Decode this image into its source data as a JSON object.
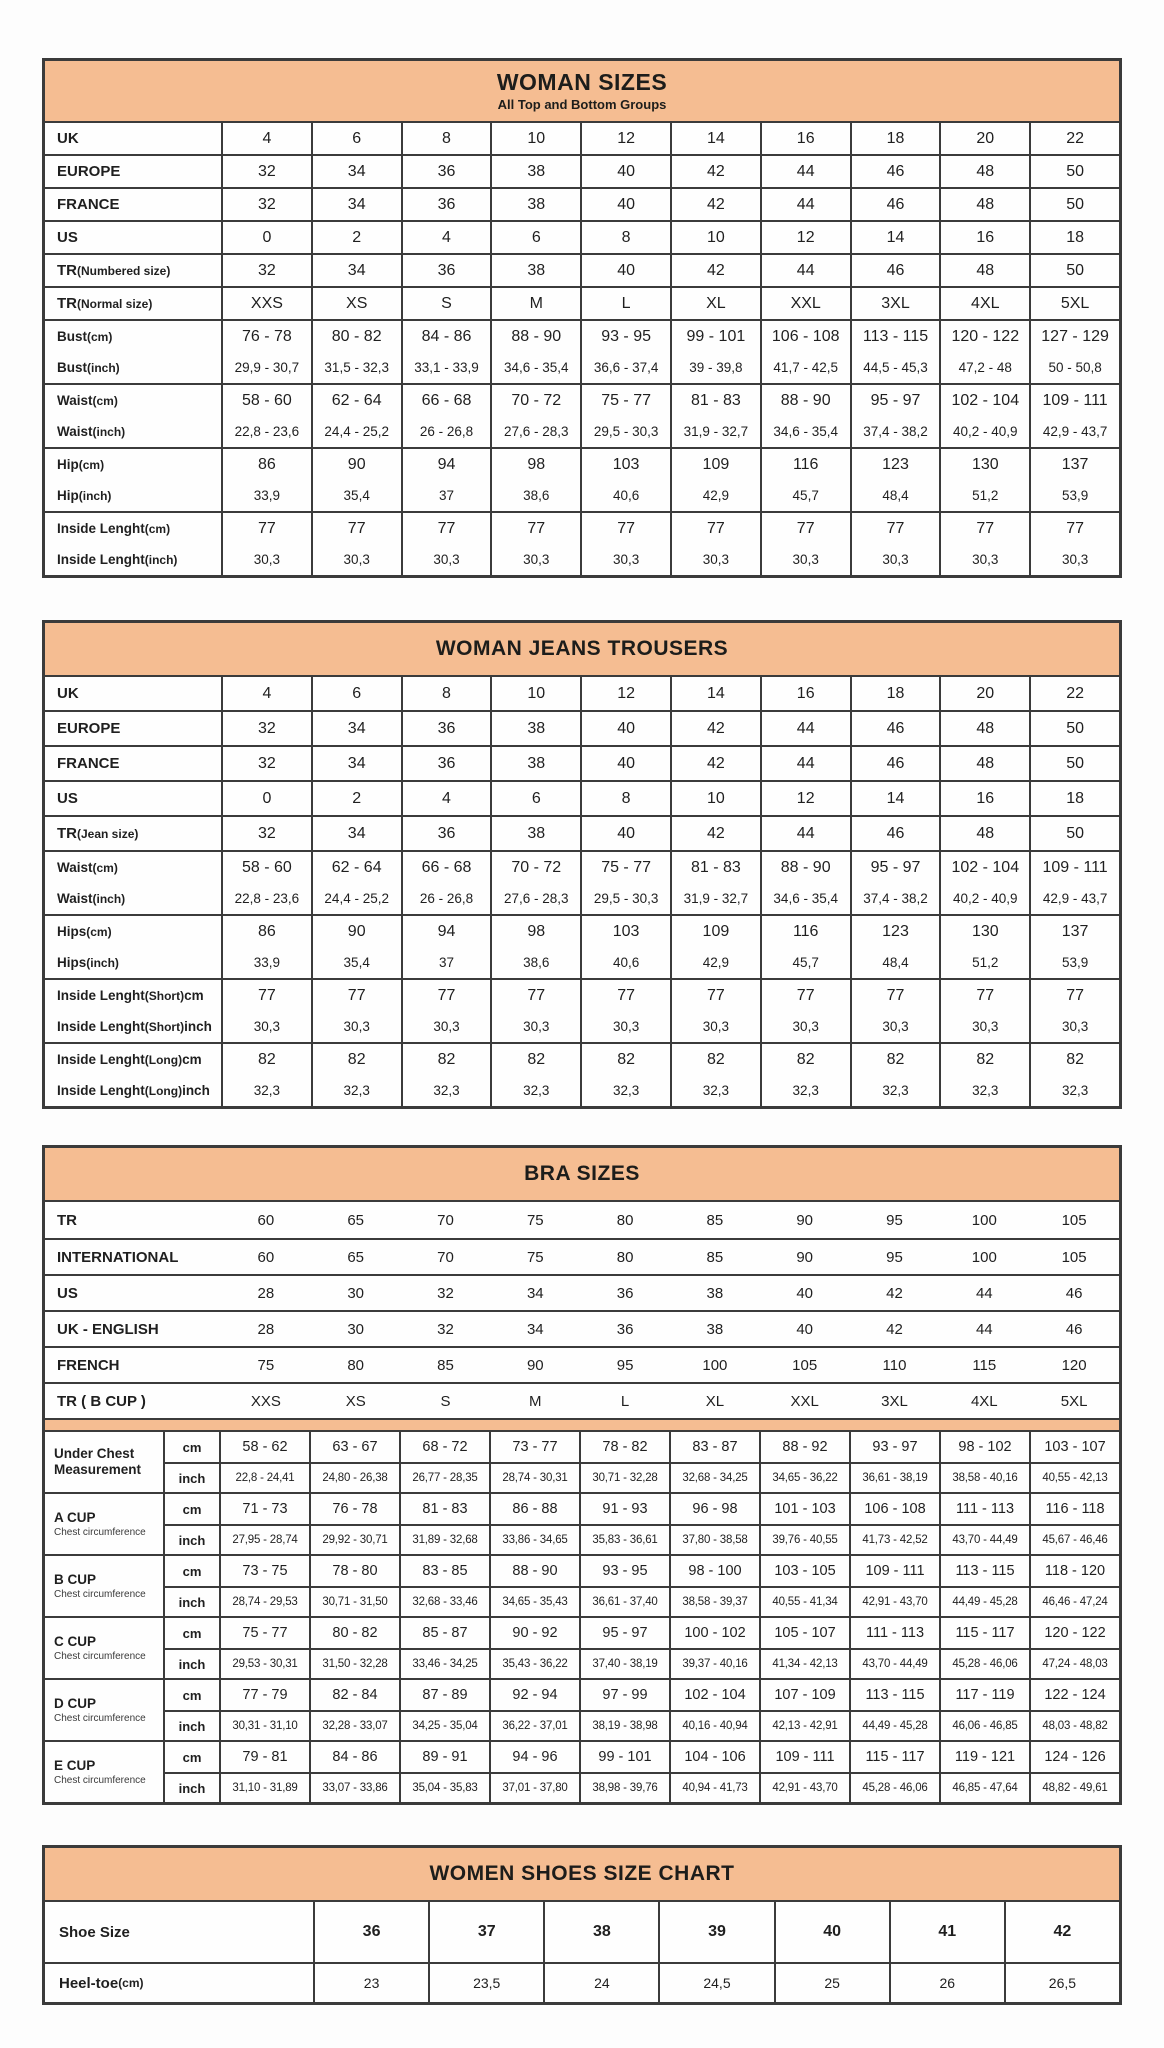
{
  "page": {
    "accent_color": "#f5bd92",
    "border_color": "#3b3b3b",
    "text_color": "#1d1d1b"
  },
  "woman_sizes": {
    "title": "WOMAN SIZES",
    "subtitle": "All Top and Bottom Groups",
    "simple_rows": [
      {
        "label": "UK",
        "values": [
          "4",
          "6",
          "8",
          "10",
          "12",
          "14",
          "16",
          "18",
          "20",
          "22"
        ]
      },
      {
        "label": "EUROPE",
        "values": [
          "32",
          "34",
          "36",
          "38",
          "40",
          "42",
          "44",
          "46",
          "48",
          "50"
        ]
      },
      {
        "label": "FRANCE",
        "values": [
          "32",
          "34",
          "36",
          "38",
          "40",
          "42",
          "44",
          "46",
          "48",
          "50"
        ]
      },
      {
        "label": "US",
        "values": [
          "0",
          "2",
          "4",
          "6",
          "8",
          "10",
          "12",
          "14",
          "16",
          "18"
        ]
      },
      {
        "label": "TR (Numbered size)",
        "values": [
          "32",
          "34",
          "36",
          "38",
          "40",
          "42",
          "44",
          "46",
          "48",
          "50"
        ]
      },
      {
        "label": "TR (Normal size)",
        "values": [
          "XXS",
          "XS",
          "S",
          "M",
          "L",
          "XL",
          "XXL",
          "3XL",
          "4XL",
          "5XL"
        ]
      }
    ],
    "pair_rows": [
      {
        "label_cm": "Bust (cm)",
        "label_inch": "Bust (inch)",
        "cm": [
          "76 - 78",
          "80 - 82",
          "84 - 86",
          "88 - 90",
          "93 - 95",
          "99 - 101",
          "106 - 108",
          "113 - 115",
          "120 - 122",
          "127 - 129"
        ],
        "inch": [
          "29,9 - 30,7",
          "31,5 - 32,3",
          "33,1 - 33,9",
          "34,6 - 35,4",
          "36,6 - 37,4",
          "39 - 39,8",
          "41,7 - 42,5",
          "44,5 - 45,3",
          "47,2 - 48",
          "50 - 50,8"
        ]
      },
      {
        "label_cm": "Waist (cm)",
        "label_inch": "Waist (inch)",
        "cm": [
          "58 - 60",
          "62 - 64",
          "66 - 68",
          "70 - 72",
          "75 - 77",
          "81 - 83",
          "88 - 90",
          "95 - 97",
          "102 - 104",
          "109 - 111"
        ],
        "inch": [
          "22,8 - 23,6",
          "24,4 - 25,2",
          "26 - 26,8",
          "27,6 - 28,3",
          "29,5 - 30,3",
          "31,9 - 32,7",
          "34,6 - 35,4",
          "37,4 - 38,2",
          "40,2 - 40,9",
          "42,9 - 43,7"
        ]
      },
      {
        "label_cm": "Hip (cm)",
        "label_inch": "Hip (inch)",
        "cm": [
          "86",
          "90",
          "94",
          "98",
          "103",
          "109",
          "116",
          "123",
          "130",
          "137"
        ],
        "inch": [
          "33,9",
          "35,4",
          "37",
          "38,6",
          "40,6",
          "42,9",
          "45,7",
          "48,4",
          "51,2",
          "53,9"
        ]
      },
      {
        "label_cm": "Inside Lenght (cm)",
        "label_inch": "Inside Lenght (inch)",
        "cm": [
          "77",
          "77",
          "77",
          "77",
          "77",
          "77",
          "77",
          "77",
          "77",
          "77"
        ],
        "inch": [
          "30,3",
          "30,3",
          "30,3",
          "30,3",
          "30,3",
          "30,3",
          "30,3",
          "30,3",
          "30,3",
          "30,3"
        ]
      }
    ]
  },
  "jeans": {
    "title": "WOMAN JEANS TROUSERS",
    "simple_rows": [
      {
        "label": "UK",
        "values": [
          "4",
          "6",
          "8",
          "10",
          "12",
          "14",
          "16",
          "18",
          "20",
          "22"
        ]
      },
      {
        "label": "EUROPE",
        "values": [
          "32",
          "34",
          "36",
          "38",
          "40",
          "42",
          "44",
          "46",
          "48",
          "50"
        ]
      },
      {
        "label": "FRANCE",
        "values": [
          "32",
          "34",
          "36",
          "38",
          "40",
          "42",
          "44",
          "46",
          "48",
          "50"
        ]
      },
      {
        "label": "US",
        "values": [
          "0",
          "2",
          "4",
          "6",
          "8",
          "10",
          "12",
          "14",
          "16",
          "18"
        ]
      },
      {
        "label": "TR (Jean size)",
        "values": [
          "32",
          "34",
          "36",
          "38",
          "40",
          "42",
          "44",
          "46",
          "48",
          "50"
        ]
      }
    ],
    "pair_rows": [
      {
        "label_cm": "Waist (cm)",
        "label_inch": "Waist (inch)",
        "cm": [
          "58 - 60",
          "62 - 64",
          "66 - 68",
          "70 - 72",
          "75 - 77",
          "81 - 83",
          "88 - 90",
          "95 - 97",
          "102 - 104",
          "109 - 111"
        ],
        "inch": [
          "22,8 - 23,6",
          "24,4 - 25,2",
          "26 - 26,8",
          "27,6 - 28,3",
          "29,5 - 30,3",
          "31,9 - 32,7",
          "34,6 - 35,4",
          "37,4 - 38,2",
          "40,2 - 40,9",
          "42,9 - 43,7"
        ]
      },
      {
        "label_cm": "Hips (cm)",
        "label_inch": "Hips (inch)",
        "cm": [
          "86",
          "90",
          "94",
          "98",
          "103",
          "109",
          "116",
          "123",
          "130",
          "137"
        ],
        "inch": [
          "33,9",
          "35,4",
          "37",
          "38,6",
          "40,6",
          "42,9",
          "45,7",
          "48,4",
          "51,2",
          "53,9"
        ]
      },
      {
        "label_cm": "Inside Lenght (Short) cm",
        "label_inch": "Inside Lenght (Short) inch",
        "cm": [
          "77",
          "77",
          "77",
          "77",
          "77",
          "77",
          "77",
          "77",
          "77",
          "77"
        ],
        "inch": [
          "30,3",
          "30,3",
          "30,3",
          "30,3",
          "30,3",
          "30,3",
          "30,3",
          "30,3",
          "30,3",
          "30,3"
        ]
      },
      {
        "label_cm": "Inside Lenght (Long) cm",
        "label_inch": "Inside Lenght (Long) inch",
        "cm": [
          "82",
          "82",
          "82",
          "82",
          "82",
          "82",
          "82",
          "82",
          "82",
          "82"
        ],
        "inch": [
          "32,3",
          "32,3",
          "32,3",
          "32,3",
          "32,3",
          "32,3",
          "32,3",
          "32,3",
          "32,3",
          "32,3"
        ]
      }
    ]
  },
  "bra": {
    "title": "BRA SIZES",
    "simple_rows": [
      {
        "label": "TR",
        "values": [
          "60",
          "65",
          "70",
          "75",
          "80",
          "85",
          "90",
          "95",
          "100",
          "105"
        ]
      },
      {
        "label": "INTERNATIONAL",
        "values": [
          "60",
          "65",
          "70",
          "75",
          "80",
          "85",
          "90",
          "95",
          "100",
          "105"
        ]
      },
      {
        "label": "US",
        "values": [
          "28",
          "30",
          "32",
          "34",
          "36",
          "38",
          "40",
          "42",
          "44",
          "46"
        ]
      },
      {
        "label": "UK - ENGLISH",
        "values": [
          "28",
          "30",
          "32",
          "34",
          "36",
          "38",
          "40",
          "42",
          "44",
          "46"
        ]
      },
      {
        "label": "FRENCH",
        "values": [
          "75",
          "80",
          "85",
          "90",
          "95",
          "100",
          "105",
          "110",
          "115",
          "120"
        ]
      },
      {
        "label": "TR ( B CUP )",
        "values": [
          "XXS",
          "XS",
          "S",
          "M",
          "L",
          "XL",
          "XXL",
          "3XL",
          "4XL",
          "5XL"
        ]
      }
    ],
    "unit_cm": "cm",
    "unit_inch": "inch",
    "cup_groups": [
      {
        "label": "Under Chest Measurement",
        "sub": "",
        "cm": [
          "58 - 62",
          "63 - 67",
          "68 - 72",
          "73 - 77",
          "78 - 82",
          "83 - 87",
          "88 - 92",
          "93 - 97",
          "98 - 102",
          "103 - 107"
        ],
        "inch": [
          "22,8 - 24,41",
          "24,80 - 26,38",
          "26,77 - 28,35",
          "28,74 - 30,31",
          "30,71 - 32,28",
          "32,68 - 34,25",
          "34,65 - 36,22",
          "36,61 - 38,19",
          "38,58 - 40,16",
          "40,55 - 42,13"
        ]
      },
      {
        "label": "A CUP",
        "sub": "Chest circumference",
        "cm": [
          "71 - 73",
          "76 - 78",
          "81 - 83",
          "86 - 88",
          "91 - 93",
          "96 - 98",
          "101 - 103",
          "106 - 108",
          "111 - 113",
          "116 - 118"
        ],
        "inch": [
          "27,95 - 28,74",
          "29,92 - 30,71",
          "31,89 - 32,68",
          "33,86 - 34,65",
          "35,83 - 36,61",
          "37,80 - 38,58",
          "39,76 - 40,55",
          "41,73 - 42,52",
          "43,70 - 44,49",
          "45,67 - 46,46"
        ]
      },
      {
        "label": "B CUP",
        "sub": "Chest circumference",
        "cm": [
          "73 - 75",
          "78 - 80",
          "83 - 85",
          "88 - 90",
          "93 - 95",
          "98 - 100",
          "103 - 105",
          "109 - 111",
          "113 - 115",
          "118 - 120"
        ],
        "inch": [
          "28,74 - 29,53",
          "30,71 - 31,50",
          "32,68 - 33,46",
          "34,65 - 35,43",
          "36,61 - 37,40",
          "38,58 - 39,37",
          "40,55 - 41,34",
          "42,91 - 43,70",
          "44,49 - 45,28",
          "46,46 - 47,24"
        ]
      },
      {
        "label": "C CUP",
        "sub": "Chest circumference",
        "cm": [
          "75 - 77",
          "80 - 82",
          "85 - 87",
          "90 - 92",
          "95 - 97",
          "100 - 102",
          "105 - 107",
          "111 - 113",
          "115 - 117",
          "120 - 122"
        ],
        "inch": [
          "29,53 - 30,31",
          "31,50 - 32,28",
          "33,46 - 34,25",
          "35,43 - 36,22",
          "37,40 - 38,19",
          "39,37 - 40,16",
          "41,34 - 42,13",
          "43,70 - 44,49",
          "45,28 - 46,06",
          "47,24 - 48,03"
        ]
      },
      {
        "label": "D CUP",
        "sub": "Chest circumference",
        "cm": [
          "77 - 79",
          "82 - 84",
          "87 - 89",
          "92 - 94",
          "97 - 99",
          "102 - 104",
          "107 - 109",
          "113 - 115",
          "117 - 119",
          "122 - 124"
        ],
        "inch": [
          "30,31 - 31,10",
          "32,28 - 33,07",
          "34,25 - 35,04",
          "36,22 - 37,01",
          "38,19 - 38,98",
          "40,16 - 40,94",
          "42,13 - 42,91",
          "44,49 - 45,28",
          "46,06 - 46,85",
          "48,03 - 48,82"
        ]
      },
      {
        "label": "E CUP",
        "sub": "Chest circumference",
        "cm": [
          "79 - 81",
          "84 - 86",
          "89 - 91",
          "94 - 96",
          "99 - 101",
          "104 - 106",
          "109 - 111",
          "115 - 117",
          "119 - 121",
          "124 - 126"
        ],
        "inch": [
          "31,10 - 31,89",
          "33,07 - 33,86",
          "35,04 - 35,83",
          "37,01 - 37,80",
          "38,98 - 39,76",
          "40,94 - 41,73",
          "42,91 - 43,70",
          "45,28 - 46,06",
          "46,85 - 47,64",
          "48,82 - 49,61"
        ]
      }
    ]
  },
  "shoes": {
    "title": "WOMEN SHOES SIZE CHART",
    "rows": [
      {
        "label": "Shoe Size",
        "bold": true,
        "values": [
          "36",
          "37",
          "38",
          "39",
          "40",
          "41",
          "42"
        ]
      },
      {
        "label": "Heel-toe (cm)",
        "bold": false,
        "values": [
          "23",
          "23,5",
          "24",
          "24,5",
          "25",
          "26",
          "26,5"
        ]
      }
    ]
  }
}
